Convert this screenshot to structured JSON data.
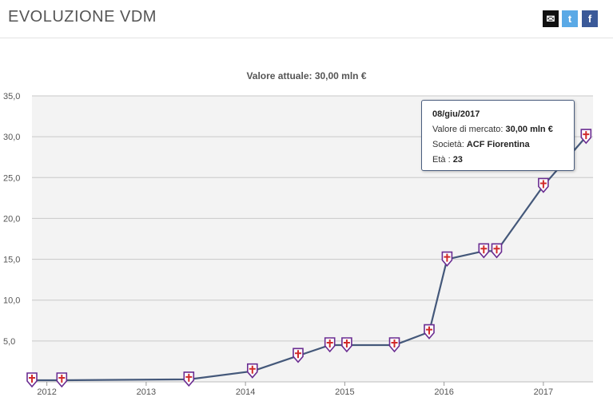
{
  "header": {
    "title": "EVOLUZIONE VDM",
    "share": {
      "mail_icon": "mail-icon",
      "twitter_icon": "twitter-icon",
      "facebook_icon": "facebook-icon"
    }
  },
  "chart_data": {
    "type": "line",
    "title": "Valore attuale: 30,00 mln €",
    "xlabel": "",
    "ylabel": "",
    "ylim": [
      0,
      35
    ],
    "y_ticks": [
      "5,0",
      "10,0",
      "15,0",
      "20,0",
      "25,0",
      "30,0",
      "35,0"
    ],
    "y_tick_values": [
      5,
      10,
      15,
      20,
      25,
      30,
      35
    ],
    "x_ticks": [
      "2012",
      "2013",
      "2014",
      "2015",
      "2016",
      "2017"
    ],
    "xlim": [
      2011.85,
      2017.5
    ],
    "grid": true,
    "line_color": "#44587a",
    "marker_icon": "club-crest-icon",
    "series": [
      {
        "values": [
          {
            "x": 2011.85,
            "y": 0.2
          },
          {
            "x": 2012.15,
            "y": 0.2
          },
          {
            "x": 2013.43,
            "y": 0.3
          },
          {
            "x": 2014.07,
            "y": 1.3
          },
          {
            "x": 2014.53,
            "y": 3.2
          },
          {
            "x": 2014.85,
            "y": 4.5
          },
          {
            "x": 2015.02,
            "y": 4.5
          },
          {
            "x": 2015.5,
            "y": 4.5
          },
          {
            "x": 2015.85,
            "y": 6.1
          },
          {
            "x": 2016.03,
            "y": 15.0
          },
          {
            "x": 2016.4,
            "y": 16.0
          },
          {
            "x": 2016.53,
            "y": 16.0
          },
          {
            "x": 2017.0,
            "y": 24.0
          },
          {
            "x": 2017.43,
            "y": 30.0
          }
        ]
      }
    ]
  },
  "tooltip": {
    "date": "08/giu/2017",
    "market_value_label": "Valore di mercato:",
    "market_value": "30,00 mln €",
    "club_label": "Società:",
    "club": "ACF Fiorentina",
    "age_label": "Età :",
    "age": "23"
  }
}
